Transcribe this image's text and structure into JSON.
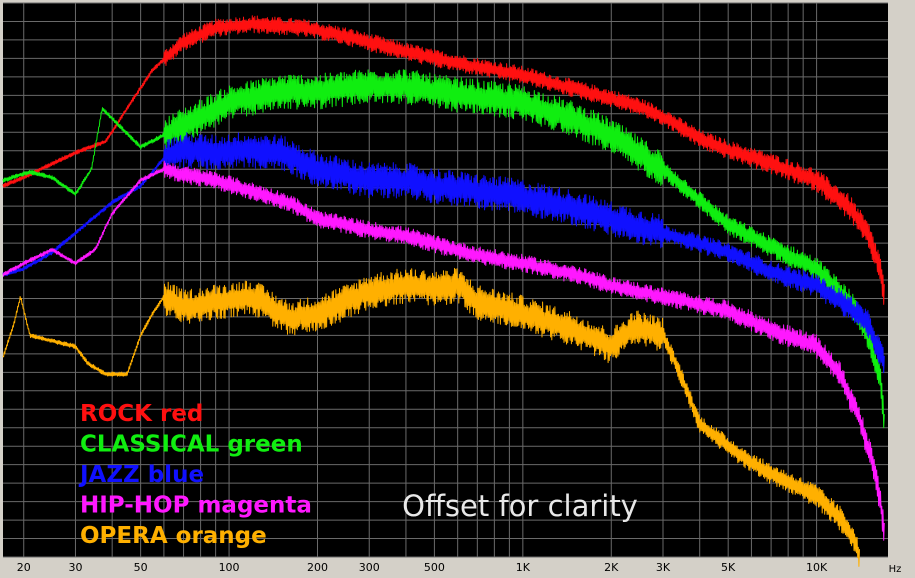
{
  "chart_data": {
    "type": "line",
    "x_scale": "log",
    "xlim": [
      17,
      17500
    ],
    "x_unit_label": "Hz",
    "x_tick_labels": [
      {
        "v": 20,
        "t": "20"
      },
      {
        "v": 30,
        "t": "30"
      },
      {
        "v": 50,
        "t": "50"
      },
      {
        "v": 100,
        "t": "100"
      },
      {
        "v": 200,
        "t": "200"
      },
      {
        "v": 300,
        "t": "300"
      },
      {
        "v": 500,
        "t": "500"
      },
      {
        "v": 1000,
        "t": "1K"
      },
      {
        "v": 2000,
        "t": "2K"
      },
      {
        "v": 3000,
        "t": "3K"
      },
      {
        "v": 5000,
        "t": "5K"
      },
      {
        "v": 10000,
        "t": "10K"
      }
    ],
    "ylim": [
      -100,
      0
    ],
    "grid": true,
    "legend_position": "bottom-left",
    "series": [
      {
        "name": "ROCK red",
        "color": "#ff1010",
        "points": [
          [
            17,
            -33
          ],
          [
            20,
            -31.5
          ],
          [
            25,
            -29
          ],
          [
            30,
            -27
          ],
          [
            38,
            -25
          ],
          [
            45,
            -19
          ],
          [
            55,
            -12
          ],
          [
            70,
            -7
          ],
          [
            90,
            -4.5
          ],
          [
            120,
            -3.8
          ],
          [
            180,
            -4.5
          ],
          [
            250,
            -6
          ],
          [
            350,
            -8
          ],
          [
            500,
            -10
          ],
          [
            700,
            -11.5
          ],
          [
            1000,
            -13
          ],
          [
            1500,
            -15.5
          ],
          [
            2000,
            -17.2
          ],
          [
            2500,
            -18.7
          ],
          [
            3000,
            -20.5
          ],
          [
            4000,
            -24.5
          ],
          [
            5000,
            -26.5
          ],
          [
            7000,
            -29
          ],
          [
            10000,
            -32
          ],
          [
            13000,
            -37
          ],
          [
            15000,
            -42
          ],
          [
            16500,
            -48
          ],
          [
            17000,
            -53
          ]
        ]
      },
      {
        "name": "CLASSICAL green",
        "color": "#10ee10",
        "points": [
          [
            17,
            -32
          ],
          [
            21,
            -30.5
          ],
          [
            25,
            -31.5
          ],
          [
            30,
            -34.5
          ],
          [
            34,
            -30
          ],
          [
            37,
            -19
          ],
          [
            42,
            -22
          ],
          [
            50,
            -26
          ],
          [
            70,
            -22
          ],
          [
            100,
            -18
          ],
          [
            150,
            -16
          ],
          [
            200,
            -16
          ],
          [
            300,
            -15
          ],
          [
            400,
            -15
          ],
          [
            500,
            -16
          ],
          [
            700,
            -17
          ],
          [
            1000,
            -18
          ],
          [
            1500,
            -21
          ],
          [
            2000,
            -24
          ],
          [
            3000,
            -30
          ],
          [
            5000,
            -40
          ],
          [
            7000,
            -44
          ],
          [
            10000,
            -48
          ],
          [
            13000,
            -54
          ],
          [
            15000,
            -60
          ],
          [
            16500,
            -68
          ],
          [
            17000,
            -76
          ]
        ]
      },
      {
        "name": "JAZZ blue",
        "color": "#1010ff",
        "points": [
          [
            17,
            -49
          ],
          [
            20,
            -48
          ],
          [
            25,
            -45
          ],
          [
            30,
            -41.5
          ],
          [
            40,
            -36
          ],
          [
            50,
            -33
          ],
          [
            60,
            -28
          ],
          [
            70,
            -26.5
          ],
          [
            90,
            -27
          ],
          [
            110,
            -26.5
          ],
          [
            150,
            -27
          ],
          [
            200,
            -30
          ],
          [
            300,
            -32
          ],
          [
            400,
            -32
          ],
          [
            500,
            -33
          ],
          [
            700,
            -34
          ],
          [
            1000,
            -35
          ],
          [
            1500,
            -37
          ],
          [
            2000,
            -39
          ],
          [
            3000,
            -41.5
          ],
          [
            5000,
            -45
          ],
          [
            7000,
            -48.5
          ],
          [
            10000,
            -51
          ],
          [
            13000,
            -55
          ],
          [
            15000,
            -58
          ],
          [
            17000,
            -65
          ]
        ]
      },
      {
        "name": "HIP-HOP magenta",
        "color": "#ff18ff",
        "points": [
          [
            17,
            -49
          ],
          [
            20,
            -47
          ],
          [
            25,
            -44.5
          ],
          [
            30,
            -47
          ],
          [
            35,
            -44.5
          ],
          [
            40,
            -38
          ],
          [
            50,
            -32
          ],
          [
            60,
            -30
          ],
          [
            70,
            -31
          ],
          [
            90,
            -32
          ],
          [
            120,
            -34
          ],
          [
            160,
            -36
          ],
          [
            200,
            -39
          ],
          [
            300,
            -41
          ],
          [
            400,
            -42
          ],
          [
            500,
            -43.5
          ],
          [
            700,
            -45.5
          ],
          [
            1000,
            -47
          ],
          [
            1500,
            -49
          ],
          [
            2000,
            -51
          ],
          [
            3000,
            -53
          ],
          [
            5000,
            -55.5
          ],
          [
            7000,
            -59
          ],
          [
            10000,
            -62
          ],
          [
            12000,
            -67
          ],
          [
            14000,
            -75
          ],
          [
            15500,
            -83
          ],
          [
            16500,
            -90
          ],
          [
            17000,
            -96
          ]
        ]
      },
      {
        "name": "OPERA orange",
        "color": "#ffb000",
        "points": [
          [
            17,
            -64
          ],
          [
            18.5,
            -58
          ],
          [
            19.5,
            -53
          ],
          [
            21,
            -60
          ],
          [
            25,
            -61
          ],
          [
            30,
            -62
          ],
          [
            33,
            -65
          ],
          [
            38,
            -67
          ],
          [
            45,
            -67
          ],
          [
            50,
            -60
          ],
          [
            55,
            -56
          ],
          [
            60,
            -53
          ],
          [
            70,
            -55
          ],
          [
            90,
            -54
          ],
          [
            120,
            -53
          ],
          [
            160,
            -57
          ],
          [
            200,
            -56
          ],
          [
            250,
            -54
          ],
          [
            300,
            -52
          ],
          [
            400,
            -51
          ],
          [
            500,
            -51.5
          ],
          [
            600,
            -51
          ],
          [
            700,
            -54
          ],
          [
            1000,
            -56
          ],
          [
            1500,
            -59
          ],
          [
            2000,
            -62
          ],
          [
            2400,
            -58.5
          ],
          [
            3000,
            -60
          ],
          [
            3500,
            -68
          ],
          [
            4000,
            -76
          ],
          [
            5000,
            -80
          ],
          [
            6000,
            -83
          ],
          [
            7000,
            -85
          ],
          [
            10000,
            -89
          ],
          [
            12000,
            -93
          ],
          [
            13500,
            -97
          ],
          [
            14000,
            -100
          ]
        ]
      }
    ],
    "annotation": "Offset for clarity"
  }
}
